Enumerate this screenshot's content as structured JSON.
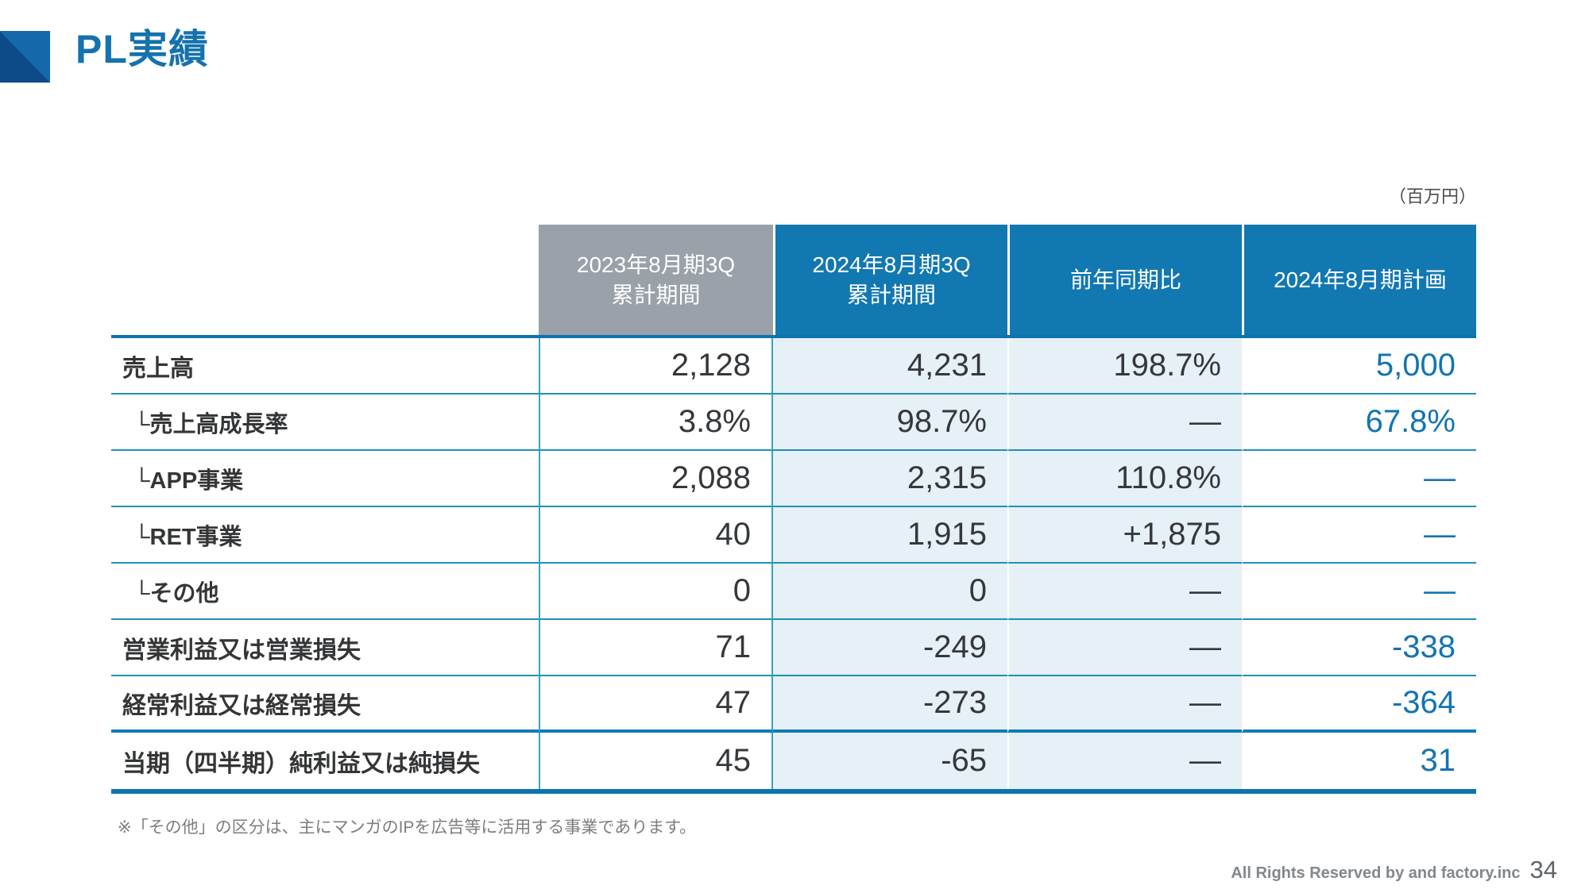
{
  "page": {
    "title": "PL実績",
    "unit_label": "（百万円）",
    "footnote": "※「その他」の区分は、主にマンガのIPを広告等に活用する事業であります。",
    "footer": {
      "rights": "All Rights Reserved by and factory.inc",
      "page_number": "34"
    }
  },
  "colors": {
    "accent_blue": "#1278b1",
    "header_gray": "#9aa1a9",
    "light_blue_bg": "#e6f0f7",
    "value_blue": "#1374b0",
    "dark_logo_blue": "#0d4a88"
  },
  "table": {
    "columns": [
      {
        "line1": "2023年8月期3Q",
        "line2": "累計期間"
      },
      {
        "line1": "2024年8月期3Q",
        "line2": "累計期間"
      },
      {
        "line1": "前年同期比",
        "line2": ""
      },
      {
        "line1": "2024年8月期計画",
        "line2": ""
      }
    ],
    "rows": [
      {
        "label": "売上高",
        "sub": false,
        "values": [
          "2,128",
          "4,231",
          "198.7%",
          "5,000"
        ]
      },
      {
        "label": "└売上高成長率",
        "sub": true,
        "values": [
          "3.8%",
          "98.7%",
          "—",
          "67.8%"
        ]
      },
      {
        "label": "└APP事業",
        "sub": true,
        "values": [
          "2,088",
          "2,315",
          "110.8%",
          "—"
        ]
      },
      {
        "label": "└RET事業",
        "sub": true,
        "values": [
          "40",
          "1,915",
          "+1,875",
          "—"
        ]
      },
      {
        "label": "└その他",
        "sub": true,
        "values": [
          "0",
          "0",
          "—",
          "—"
        ]
      },
      {
        "label": "営業利益又は営業損失",
        "sub": false,
        "values": [
          "71",
          "-249",
          "—",
          "-338"
        ]
      },
      {
        "label": "経常利益又は経常損失",
        "sub": false,
        "values": [
          "47",
          "-273",
          "—",
          "-364"
        ]
      },
      {
        "label": "当期（四半期）純利益又は純損失",
        "sub": false,
        "values": [
          "45",
          "-65",
          "—",
          "31"
        ]
      }
    ]
  }
}
